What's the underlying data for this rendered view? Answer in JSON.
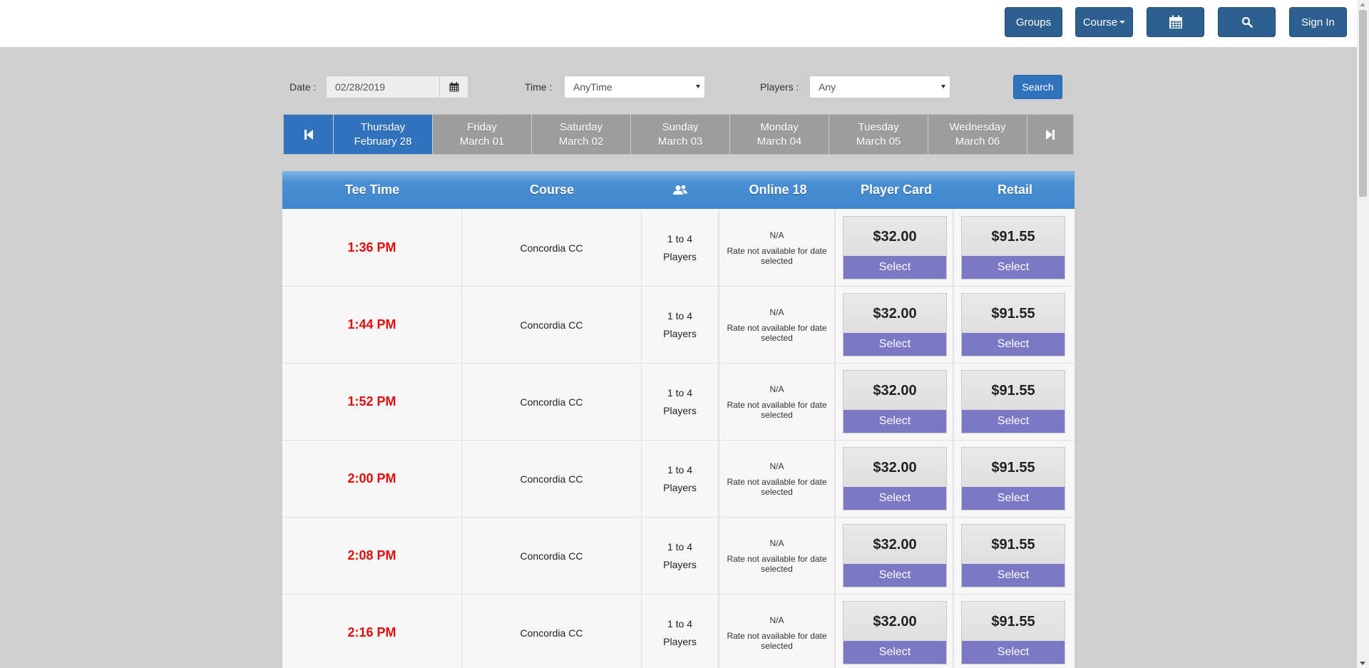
{
  "navbar": {
    "groups_label": "Groups",
    "course_label": "Course",
    "signin_label": "Sign In"
  },
  "filters": {
    "date_label": "Date :",
    "date_value": "02/28/2019",
    "time_label": "Time :",
    "time_value": "AnyTime",
    "players_label": "Players :",
    "players_value": "Any",
    "search_label": "Search"
  },
  "days": [
    {
      "weekday": "Thursday",
      "date": "February 28",
      "active": true
    },
    {
      "weekday": "Friday",
      "date": "March 01"
    },
    {
      "weekday": "Saturday",
      "date": "March 02"
    },
    {
      "weekday": "Sunday",
      "date": "March 03"
    },
    {
      "weekday": "Monday",
      "date": "March 04"
    },
    {
      "weekday": "Tuesday",
      "date": "March 05"
    },
    {
      "weekday": "Wednesday",
      "date": "March 06"
    }
  ],
  "table": {
    "headers": {
      "tee_time": "Tee Time",
      "course": "Course",
      "online": "Online 18",
      "player_card": "Player Card",
      "retail": "Retail"
    },
    "rows": [
      {
        "time": "1:36 PM",
        "course": "Concordia CC",
        "players_line1": "1 to 4",
        "players_line2": "Players",
        "online_na": "N/A",
        "online_note": "Rate not available for date selected",
        "card_price": "$32.00",
        "retail_price": "$91.55",
        "select": "Select"
      },
      {
        "time": "1:44 PM",
        "course": "Concordia CC",
        "players_line1": "1 to 4",
        "players_line2": "Players",
        "online_na": "N/A",
        "online_note": "Rate not available for date selected",
        "card_price": "$32.00",
        "retail_price": "$91.55",
        "select": "Select"
      },
      {
        "time": "1:52 PM",
        "course": "Concordia CC",
        "players_line1": "1 to 4",
        "players_line2": "Players",
        "online_na": "N/A",
        "online_note": "Rate not available for date selected",
        "card_price": "$32.00",
        "retail_price": "$91.55",
        "select": "Select"
      },
      {
        "time": "2:00 PM",
        "course": "Concordia CC",
        "players_line1": "1 to 4",
        "players_line2": "Players",
        "online_na": "N/A",
        "online_note": "Rate not available for date selected",
        "card_price": "$32.00",
        "retail_price": "$91.55",
        "select": "Select"
      },
      {
        "time": "2:08 PM",
        "course": "Concordia CC",
        "players_line1": "1 to 4",
        "players_line2": "Players",
        "online_na": "N/A",
        "online_note": "Rate not available for date selected",
        "card_price": "$32.00",
        "retail_price": "$91.55",
        "select": "Select"
      },
      {
        "time": "2:16 PM",
        "course": "Concordia CC",
        "players_line1": "1 to 4",
        "players_line2": "Players",
        "online_na": "N/A",
        "online_note": "Rate not available for date selected",
        "card_price": "$32.00",
        "retail_price": "$91.55",
        "select": "Select"
      }
    ]
  }
}
